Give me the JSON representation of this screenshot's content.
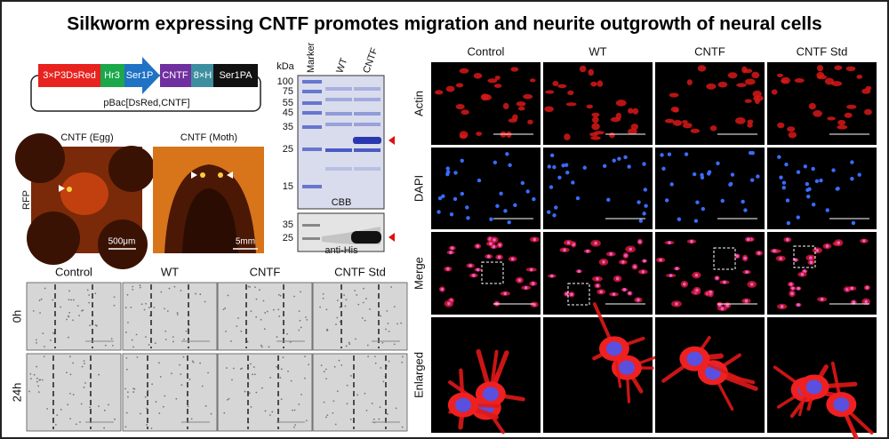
{
  "title": "Silkworm expressing CNTF promotes migration and neurite outgrowth of neural cells",
  "construct": {
    "segments": [
      "3×P3DsRed",
      "Hr3",
      "Ser1P",
      "CNTF",
      "8×H",
      "Ser1PA"
    ],
    "plasmid": "pBac[DsRed,CNTF]"
  },
  "rfp": {
    "row_label": "RFP",
    "panels": [
      {
        "label": "CNTF (Egg)",
        "scale": "500μm"
      },
      {
        "label": "CNTF (Moth)",
        "scale": "5mm"
      }
    ]
  },
  "gel": {
    "unit": "kDa",
    "lanes": [
      "Marker",
      "WT",
      "CNTF"
    ],
    "markers": [
      "100",
      "75",
      "55",
      "45",
      "35",
      "25",
      "15"
    ],
    "stain": "CBB",
    "blot_markers": [
      "35",
      "25"
    ],
    "blot": "anti-His"
  },
  "migration": {
    "columns": [
      "Control",
      "WT",
      "CNTF",
      "CNTF Std"
    ],
    "rows": [
      "0h",
      "24h"
    ]
  },
  "staining": {
    "columns": [
      "Control",
      "WT",
      "CNTF",
      "CNTF Std"
    ],
    "rows": [
      "Actin",
      "DAPI",
      "Merge",
      "Enlarged"
    ]
  }
}
